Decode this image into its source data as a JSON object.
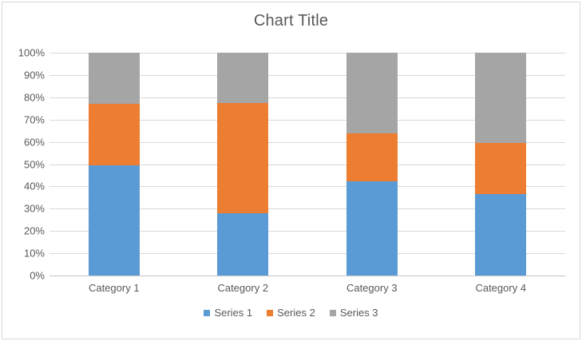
{
  "chart_data": {
    "type": "bar",
    "subtype": "stacked-100-percent-column",
    "title": "Chart Title",
    "categories": [
      "Category 1",
      "Category 2",
      "Category 3",
      "Category 4"
    ],
    "series": [
      {
        "name": "Series 1",
        "color": "#5B9BD5",
        "values": [
          49.4,
          28.1,
          42.2,
          36.6
        ]
      },
      {
        "name": "Series 2",
        "color": "#ED7D31",
        "values": [
          27.6,
          49.4,
          21.7,
          22.8
        ]
      },
      {
        "name": "Series 3",
        "color": "#A5A5A5",
        "values": [
          23.0,
          22.5,
          36.1,
          40.6
        ]
      }
    ],
    "yticks": [
      "0%",
      "10%",
      "20%",
      "30%",
      "40%",
      "50%",
      "60%",
      "70%",
      "80%",
      "90%",
      "100%"
    ],
    "ylim": [
      0,
      100
    ],
    "xlabel": "",
    "ylabel": "",
    "grid": true,
    "legend_position": "bottom"
  },
  "colors": {
    "text": "#595959",
    "gridline": "#D9D9D9",
    "axis_line": "#C6C6C6",
    "border": "#D9D9D9",
    "background": "#FFFFFF"
  }
}
